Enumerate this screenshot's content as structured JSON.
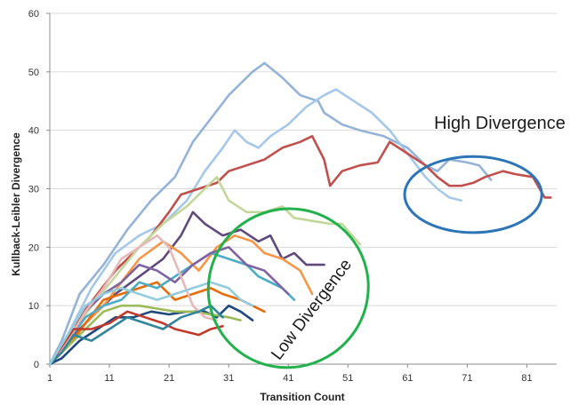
{
  "chart_data": {
    "type": "line",
    "xlabel": "Transition Count",
    "ylabel": "Kullback-Leibler Divergence",
    "xlim": [
      1,
      86
    ],
    "ylim": [
      0,
      60
    ],
    "xticks": [
      1,
      11,
      21,
      31,
      41,
      51,
      61,
      71,
      81
    ],
    "yticks": [
      0,
      10,
      20,
      30,
      40,
      50,
      60
    ],
    "grid": "horizontal",
    "legend": "none",
    "annotations": [
      {
        "text": "High Divergence",
        "shape": "ellipse",
        "color": "#2E75B6",
        "cx": 72,
        "cy": 29,
        "rx": 11.5,
        "ry": 6.5
      },
      {
        "text": "Low Divergence",
        "shape": "ellipse",
        "color": "#22B14C",
        "cx": 41,
        "cy": 13,
        "rx": 13.5,
        "ry": 13.5
      }
    ],
    "series": [
      {
        "color": "#95B3D7",
        "points": [
          [
            1,
            0
          ],
          [
            3,
            4
          ],
          [
            6,
            12
          ],
          [
            10,
            17
          ],
          [
            14,
            23
          ],
          [
            18,
            28
          ],
          [
            22,
            32
          ],
          [
            25,
            38
          ],
          [
            28,
            42
          ],
          [
            31,
            46
          ],
          [
            33,
            48
          ],
          [
            35,
            50
          ],
          [
            37,
            51.5
          ],
          [
            40,
            49
          ],
          [
            43,
            46
          ],
          [
            46,
            45
          ],
          [
            47,
            43
          ],
          [
            50,
            41
          ],
          [
            53,
            40
          ],
          [
            57,
            39
          ],
          [
            61,
            37
          ],
          [
            64,
            34
          ],
          [
            66,
            33
          ],
          [
            68,
            35
          ],
          [
            71,
            34.5
          ],
          [
            73,
            34
          ],
          [
            75,
            31.5
          ]
        ]
      },
      {
        "color": "#A6C8E8",
        "points": [
          [
            1,
            0
          ],
          [
            4,
            5
          ],
          [
            8,
            13
          ],
          [
            12,
            19
          ],
          [
            16,
            22
          ],
          [
            20,
            24
          ],
          [
            24,
            28
          ],
          [
            27,
            33
          ],
          [
            30,
            37
          ],
          [
            32,
            40
          ],
          [
            34,
            38
          ],
          [
            36,
            37
          ],
          [
            38,
            39
          ],
          [
            41,
            41
          ],
          [
            44,
            44
          ],
          [
            47,
            46
          ],
          [
            49,
            47
          ],
          [
            52,
            45
          ],
          [
            55,
            43
          ],
          [
            58,
            40
          ],
          [
            61,
            36
          ],
          [
            64,
            32
          ],
          [
            66,
            30
          ],
          [
            68,
            28.5
          ],
          [
            70,
            28
          ]
        ]
      },
      {
        "color": "#C0504D",
        "points": [
          [
            1,
            0
          ],
          [
            4,
            3
          ],
          [
            6,
            8
          ],
          [
            9,
            12
          ],
          [
            12,
            16
          ],
          [
            15,
            19
          ],
          [
            18,
            22
          ],
          [
            21,
            26
          ],
          [
            23,
            29
          ],
          [
            26,
            30
          ],
          [
            29,
            31
          ],
          [
            31,
            33
          ],
          [
            34,
            34
          ],
          [
            37,
            35
          ],
          [
            40,
            37
          ],
          [
            43,
            38
          ],
          [
            45,
            39
          ],
          [
            47,
            35
          ],
          [
            48,
            30.5
          ],
          [
            50,
            33
          ],
          [
            53,
            34
          ],
          [
            56,
            34.5
          ],
          [
            58,
            38
          ],
          [
            61,
            36
          ],
          [
            64,
            34
          ],
          [
            66,
            32
          ],
          [
            68,
            30.5
          ],
          [
            70,
            30.5
          ],
          [
            72,
            31
          ],
          [
            74,
            32
          ],
          [
            77,
            33
          ],
          [
            79,
            32.5
          ],
          [
            82,
            32
          ],
          [
            84,
            28.5
          ],
          [
            85,
            28.5
          ]
        ]
      },
      {
        "color": "#C4D79B",
        "points": [
          [
            1,
            0
          ],
          [
            4,
            4
          ],
          [
            8,
            10
          ],
          [
            12,
            15
          ],
          [
            16,
            20
          ],
          [
            20,
            24
          ],
          [
            24,
            27
          ],
          [
            27,
            30
          ],
          [
            29,
            32
          ],
          [
            31,
            28
          ],
          [
            34,
            26
          ],
          [
            37,
            26
          ],
          [
            40,
            27
          ],
          [
            42,
            25
          ],
          [
            45,
            24.5
          ],
          [
            48,
            24
          ],
          [
            50,
            24
          ],
          [
            53,
            20.5
          ]
        ]
      },
      {
        "color": "#604A7B",
        "points": [
          [
            1,
            0
          ],
          [
            4,
            4
          ],
          [
            8,
            8
          ],
          [
            12,
            12
          ],
          [
            16,
            15
          ],
          [
            20,
            18
          ],
          [
            23,
            22
          ],
          [
            25,
            26
          ],
          [
            27,
            24
          ],
          [
            30,
            22
          ],
          [
            33,
            23
          ],
          [
            36,
            21
          ],
          [
            38,
            22
          ],
          [
            40,
            18
          ],
          [
            42,
            19
          ],
          [
            44,
            17
          ],
          [
            47,
            17
          ]
        ]
      },
      {
        "color": "#F79646",
        "points": [
          [
            1,
            0
          ],
          [
            4,
            3
          ],
          [
            7,
            7
          ],
          [
            10,
            10
          ],
          [
            13,
            14
          ],
          [
            16,
            18
          ],
          [
            20,
            21
          ],
          [
            23,
            19
          ],
          [
            26,
            16
          ],
          [
            29,
            20
          ],
          [
            32,
            22
          ],
          [
            35,
            21
          ],
          [
            37,
            19
          ],
          [
            40,
            18
          ],
          [
            43,
            16
          ],
          [
            45,
            12
          ]
        ]
      },
      {
        "color": "#E46C0A",
        "points": [
          [
            1,
            0
          ],
          [
            4,
            3
          ],
          [
            7,
            7
          ],
          [
            10,
            11
          ],
          [
            13,
            12
          ],
          [
            16,
            13
          ],
          [
            19,
            14
          ],
          [
            22,
            11
          ],
          [
            25,
            12
          ],
          [
            28,
            13
          ],
          [
            30,
            12
          ],
          [
            33,
            11
          ],
          [
            35,
            10
          ],
          [
            37,
            9
          ]
        ]
      },
      {
        "color": "#4BACC6",
        "points": [
          [
            1,
            0
          ],
          [
            4,
            4
          ],
          [
            7,
            8
          ],
          [
            10,
            10
          ],
          [
            13,
            11
          ],
          [
            16,
            14
          ],
          [
            19,
            13
          ],
          [
            22,
            15
          ],
          [
            25,
            17
          ],
          [
            28,
            19
          ],
          [
            31,
            18
          ],
          [
            34,
            17
          ],
          [
            36,
            15
          ],
          [
            38,
            14
          ],
          [
            40,
            13
          ],
          [
            42,
            11
          ]
        ]
      },
      {
        "color": "#1F497D",
        "points": [
          [
            1,
            0
          ],
          [
            3,
            1
          ],
          [
            6,
            4
          ],
          [
            9,
            6
          ],
          [
            12,
            8
          ],
          [
            15,
            8
          ],
          [
            18,
            9
          ],
          [
            21,
            8.5
          ],
          [
            24,
            9
          ],
          [
            27,
            9
          ],
          [
            29,
            8
          ],
          [
            31,
            10
          ],
          [
            33,
            9
          ],
          [
            35,
            7.5
          ]
        ]
      },
      {
        "color": "#9BBB59",
        "points": [
          [
            1,
            0
          ],
          [
            4,
            3
          ],
          [
            7,
            6
          ],
          [
            10,
            9
          ],
          [
            13,
            10
          ],
          [
            16,
            10
          ],
          [
            19,
            9.5
          ],
          [
            22,
            9
          ],
          [
            25,
            9
          ],
          [
            28,
            8.5
          ],
          [
            31,
            8
          ],
          [
            33,
            7.5
          ]
        ]
      },
      {
        "color": "#8064A2",
        "points": [
          [
            1,
            0
          ],
          [
            4,
            4
          ],
          [
            7,
            9
          ],
          [
            10,
            12
          ],
          [
            13,
            14
          ],
          [
            16,
            17
          ],
          [
            19,
            16
          ],
          [
            22,
            14
          ],
          [
            25,
            17
          ],
          [
            28,
            19
          ],
          [
            31,
            20
          ],
          [
            34,
            17
          ],
          [
            37,
            16
          ],
          [
            39,
            14
          ],
          [
            41,
            12
          ]
        ]
      },
      {
        "color": "#E6B9B8",
        "points": [
          [
            1,
            0
          ],
          [
            4,
            4
          ],
          [
            7,
            9
          ],
          [
            10,
            13
          ],
          [
            13,
            18
          ],
          [
            16,
            20
          ],
          [
            19,
            22
          ],
          [
            21,
            20
          ],
          [
            23,
            15
          ],
          [
            25,
            10
          ],
          [
            27,
            8
          ],
          [
            29,
            7.5
          ]
        ]
      },
      {
        "color": "#C0392B",
        "points": [
          [
            1,
            0
          ],
          [
            3,
            3
          ],
          [
            5,
            6
          ],
          [
            8,
            6
          ],
          [
            11,
            7
          ],
          [
            14,
            9
          ],
          [
            17,
            8
          ],
          [
            20,
            7
          ],
          [
            22,
            6
          ],
          [
            24,
            5.5
          ],
          [
            26,
            5
          ],
          [
            28,
            6
          ],
          [
            30,
            6.5
          ]
        ]
      },
      {
        "color": "#31859C",
        "points": [
          [
            1,
            0
          ],
          [
            3,
            2
          ],
          [
            5,
            5
          ],
          [
            8,
            4
          ],
          [
            11,
            6
          ],
          [
            14,
            8
          ],
          [
            17,
            7
          ],
          [
            20,
            6
          ],
          [
            23,
            8
          ],
          [
            26,
            9
          ],
          [
            28,
            10
          ],
          [
            30,
            8
          ]
        ]
      },
      {
        "color": "#93CDDD",
        "points": [
          [
            1,
            0
          ],
          [
            4,
            5
          ],
          [
            7,
            10
          ],
          [
            10,
            12
          ],
          [
            13,
            13
          ],
          [
            16,
            12
          ],
          [
            19,
            11
          ],
          [
            22,
            12
          ],
          [
            25,
            13
          ],
          [
            28,
            14
          ],
          [
            31,
            13
          ],
          [
            33,
            11
          ],
          [
            35,
            10
          ]
        ]
      }
    ]
  }
}
